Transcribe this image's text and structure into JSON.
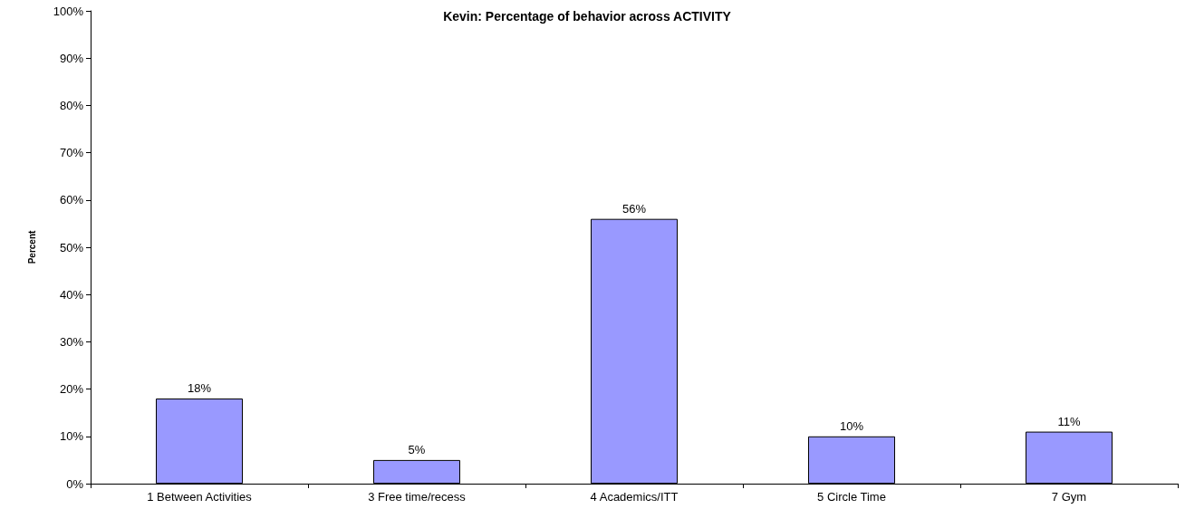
{
  "chart_data": {
    "type": "bar",
    "title": "Kevin: Percentage of behavior across ACTIVITY",
    "ylabel": "Percent",
    "categories": [
      "1 Between Activities",
      "3 Free time/recess",
      "4 Academics/ITT",
      "5 Circle Time",
      "7 Gym"
    ],
    "values": [
      18,
      5,
      56,
      10,
      11
    ],
    "value_labels": [
      "18%",
      "5%",
      "56%",
      "10%",
      "11%"
    ],
    "color": "#9999ff",
    "ylim": [
      0,
      100
    ],
    "yticks": [
      {
        "value": 0,
        "label": "0%"
      },
      {
        "value": 10,
        "label": "10%"
      },
      {
        "value": 20,
        "label": "20%"
      },
      {
        "value": 30,
        "label": "30%"
      },
      {
        "value": 40,
        "label": "40%"
      },
      {
        "value": 50,
        "label": "50%"
      },
      {
        "value": 60,
        "label": "60%"
      },
      {
        "value": 70,
        "label": "70%"
      },
      {
        "value": 80,
        "label": "80%"
      },
      {
        "value": 90,
        "label": "90%"
      },
      {
        "value": 100,
        "label": "100%"
      }
    ],
    "grid": false
  }
}
